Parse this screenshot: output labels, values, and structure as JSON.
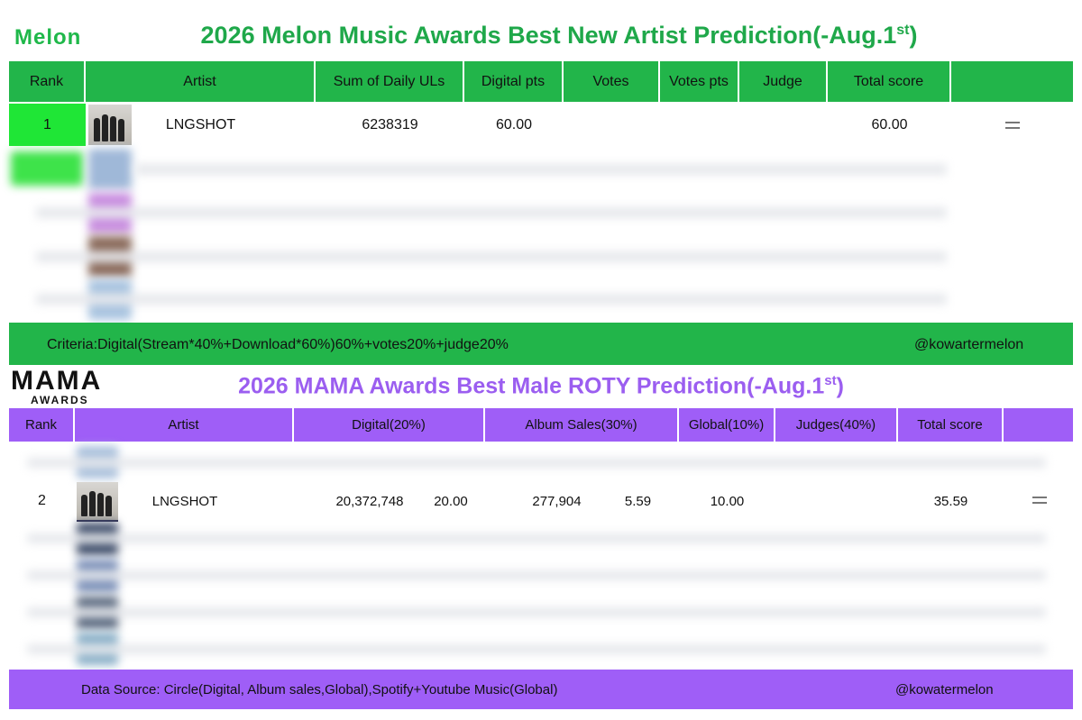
{
  "melon": {
    "logo": "Melon",
    "title": {
      "text": "2026 Melon Music Awards Best New Artist Prediction(-Aug.1",
      "sup": "st",
      "close": ")"
    },
    "table": {
      "header": [
        "Rank",
        "Artist",
        "Sum of Daily ULs",
        "Digital pts",
        "Votes",
        "Votes pts",
        "Judge",
        "Total score"
      ],
      "rows": [
        {
          "rank": "1",
          "artist": "LNGSHOT",
          "sum_daily_uls": "6238319",
          "digital_pts": "60.00",
          "total_score": "60.00"
        }
      ]
    },
    "footer": {
      "criteria": "Criteria:Digital(Stream*40%+Download*60%)60%+votes20%+judge20%",
      "handle": "@kowartermelon"
    }
  },
  "mama": {
    "logo": {
      "top": "MAMA",
      "bottom": "AWARDS"
    },
    "title": {
      "text": "2026 MAMA Awards Best Male ROTY Prediction(-Aug.1",
      "sup": "st",
      "close": ")"
    },
    "table": {
      "header": [
        "Rank",
        "Artist",
        "Digital(20%)",
        "Album Sales(30%)",
        "Global(10%)",
        "Judges(40%)",
        "Total score"
      ],
      "rows": [
        {
          "rank": "2",
          "artist": "LNGSHOT",
          "digital": "20,372,748",
          "digital_pts": "20.00",
          "album_sales": "277,904",
          "album_pts": "5.59",
          "global": "10.00",
          "total_score": "35.59"
        }
      ]
    },
    "footer": {
      "source": "Data Source: Circle(Digital, Album sales,Global),Spotify+Youtube Music(Global)",
      "handle": "@kowatermelon"
    }
  }
}
